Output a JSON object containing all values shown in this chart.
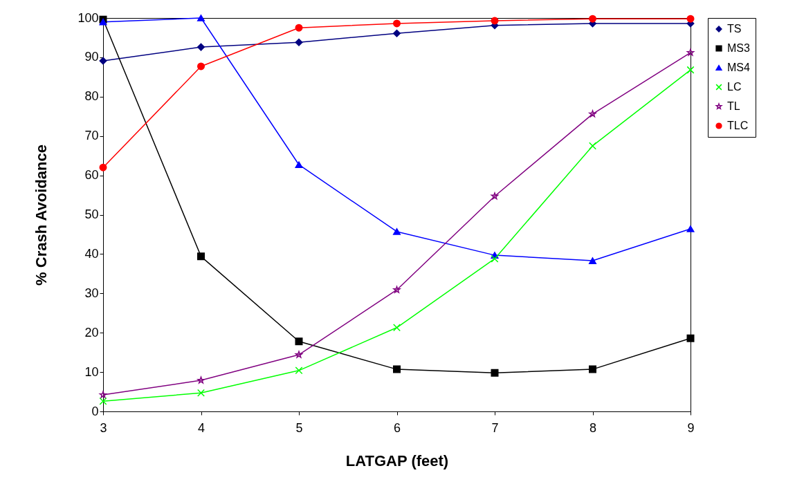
{
  "chart_data": {
    "type": "line",
    "xlabel": "LATGAP  (feet)",
    "ylabel": "% Crash Avoidance",
    "x": [
      3,
      4,
      5,
      6,
      7,
      8,
      9
    ],
    "series": [
      {
        "name": "TS",
        "color": "#000080",
        "marker": "diamond",
        "values": [
          89.1,
          92.6,
          93.8,
          96.1,
          98.1,
          98.6,
          98.6
        ]
      },
      {
        "name": "MS3",
        "color": "#000000",
        "marker": "square",
        "values": [
          99.6,
          39.4,
          17.8,
          10.7,
          9.8,
          10.7,
          18.6
        ]
      },
      {
        "name": "MS4",
        "color": "#0000ff",
        "marker": "triangle",
        "values": [
          99,
          100,
          62.7,
          45.7,
          39.7,
          38.3,
          46.4
        ]
      },
      {
        "name": "LC",
        "color": "#00ff00",
        "marker": "cross",
        "values": [
          2.6,
          4.7,
          10.4,
          21.3,
          38.8,
          67.5,
          86.8
        ]
      },
      {
        "name": "TL",
        "color": "#800080",
        "marker": "star",
        "values": [
          4.2,
          7.9,
          14.4,
          30.9,
          54.7,
          75.6,
          91.2
        ]
      },
      {
        "name": "TLC",
        "color": "#ff0000",
        "marker": "circle",
        "values": [
          62,
          87.7,
          97.5,
          98.6,
          99.3,
          99.8,
          99.8
        ]
      }
    ],
    "xlim": [
      3,
      9
    ],
    "xticks": [
      3,
      4,
      5,
      6,
      7,
      8,
      9
    ],
    "ylim": [
      0,
      100
    ],
    "yticks": [
      0,
      10,
      20,
      30,
      40,
      50,
      60,
      70,
      80,
      90,
      100
    ],
    "grid": false,
    "legend": "right",
    "line_style": "solid"
  }
}
